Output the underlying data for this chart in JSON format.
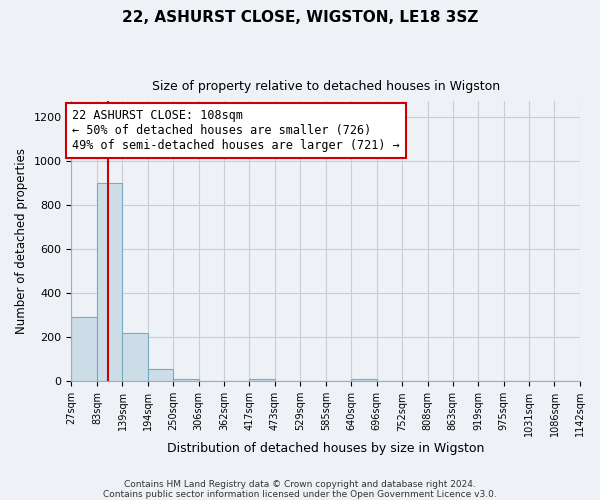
{
  "title": "22, ASHURST CLOSE, WIGSTON, LE18 3SZ",
  "subtitle": "Size of property relative to detached houses in Wigston",
  "xlabel": "Distribution of detached houses by size in Wigston",
  "ylabel": "Number of detached properties",
  "bar_edges": [
    27,
    83,
    139,
    194,
    250,
    306,
    362,
    417,
    473,
    529,
    585,
    640,
    696,
    752,
    808,
    863,
    919,
    975,
    1031,
    1086,
    1142
  ],
  "bar_heights": [
    290,
    900,
    220,
    55,
    10,
    0,
    0,
    10,
    0,
    0,
    0,
    10,
    0,
    0,
    0,
    0,
    0,
    0,
    0,
    0
  ],
  "bar_color": "#ccdde8",
  "bar_edge_color": "#7aaabf",
  "red_line_x": 108,
  "red_line_color": "#cc0000",
  "ylim": [
    0,
    1270
  ],
  "annotation_line1": "22 ASHURST CLOSE: 108sqm",
  "annotation_line2": "← 50% of detached houses are smaller (726)",
  "annotation_line3": "49% of semi-detached houses are larger (721) →",
  "annotation_box_color": "white",
  "annotation_box_edge": "#cc0000",
  "footer_line1": "Contains HM Land Registry data © Crown copyright and database right 2024.",
  "footer_line2": "Contains public sector information licensed under the Open Government Licence v3.0.",
  "background_color": "#eef2f7",
  "plot_bg_color": "#eef2f7",
  "grid_color": "#c8cdd8"
}
